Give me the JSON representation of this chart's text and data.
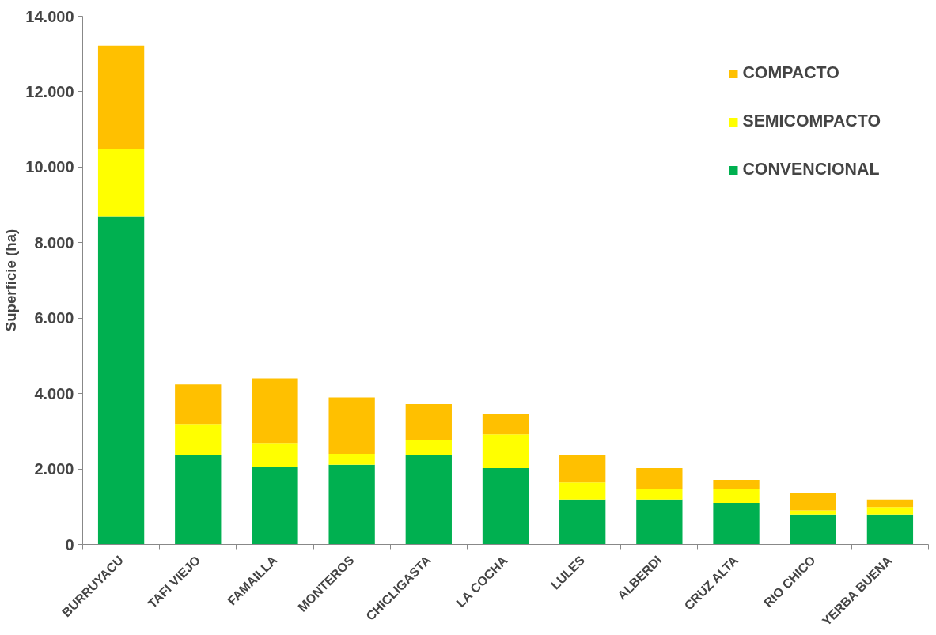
{
  "chart_data": {
    "type": "bar",
    "stacked": true,
    "ylabel": "Superficie (ha)",
    "categories": [
      "BURRUYACU",
      "TAFI VIEJO",
      "FAMAILLA",
      "MONTEROS",
      "CHICLIGASTA",
      "LA COCHA",
      "LULES",
      "ALBERDI",
      "CRUZ ALTA",
      "RIO CHICO",
      "YERBA BUENA"
    ],
    "series": [
      {
        "name": "CONVENCIONAL",
        "color": "#00b050",
        "values": [
          8700,
          2360,
          2060,
          2110,
          2360,
          2020,
          1190,
          1190,
          1100,
          790,
          790
        ]
      },
      {
        "name": "SEMICOMPACTO",
        "color": "#ffff00",
        "values": [
          1780,
          830,
          630,
          290,
          400,
          900,
          450,
          290,
          380,
          110,
          200
        ]
      },
      {
        "name": "COMPACTO",
        "color": "#ffc000",
        "values": [
          2740,
          1050,
          1710,
          1500,
          960,
          540,
          720,
          540,
          230,
          470,
          200
        ]
      }
    ],
    "ylim": [
      0,
      14000
    ],
    "yticks": [
      {
        "value": 0,
        "label": "0"
      },
      {
        "value": 2000,
        "label": "2.000"
      },
      {
        "value": 4000,
        "label": "4.000"
      },
      {
        "value": 6000,
        "label": "6.000"
      },
      {
        "value": 8000,
        "label": "8.000"
      },
      {
        "value": 10000,
        "label": "10.000"
      },
      {
        "value": 12000,
        "label": "12.000"
      },
      {
        "value": 14000,
        "label": "14.000"
      }
    ],
    "grid": false,
    "legend": "top right"
  }
}
